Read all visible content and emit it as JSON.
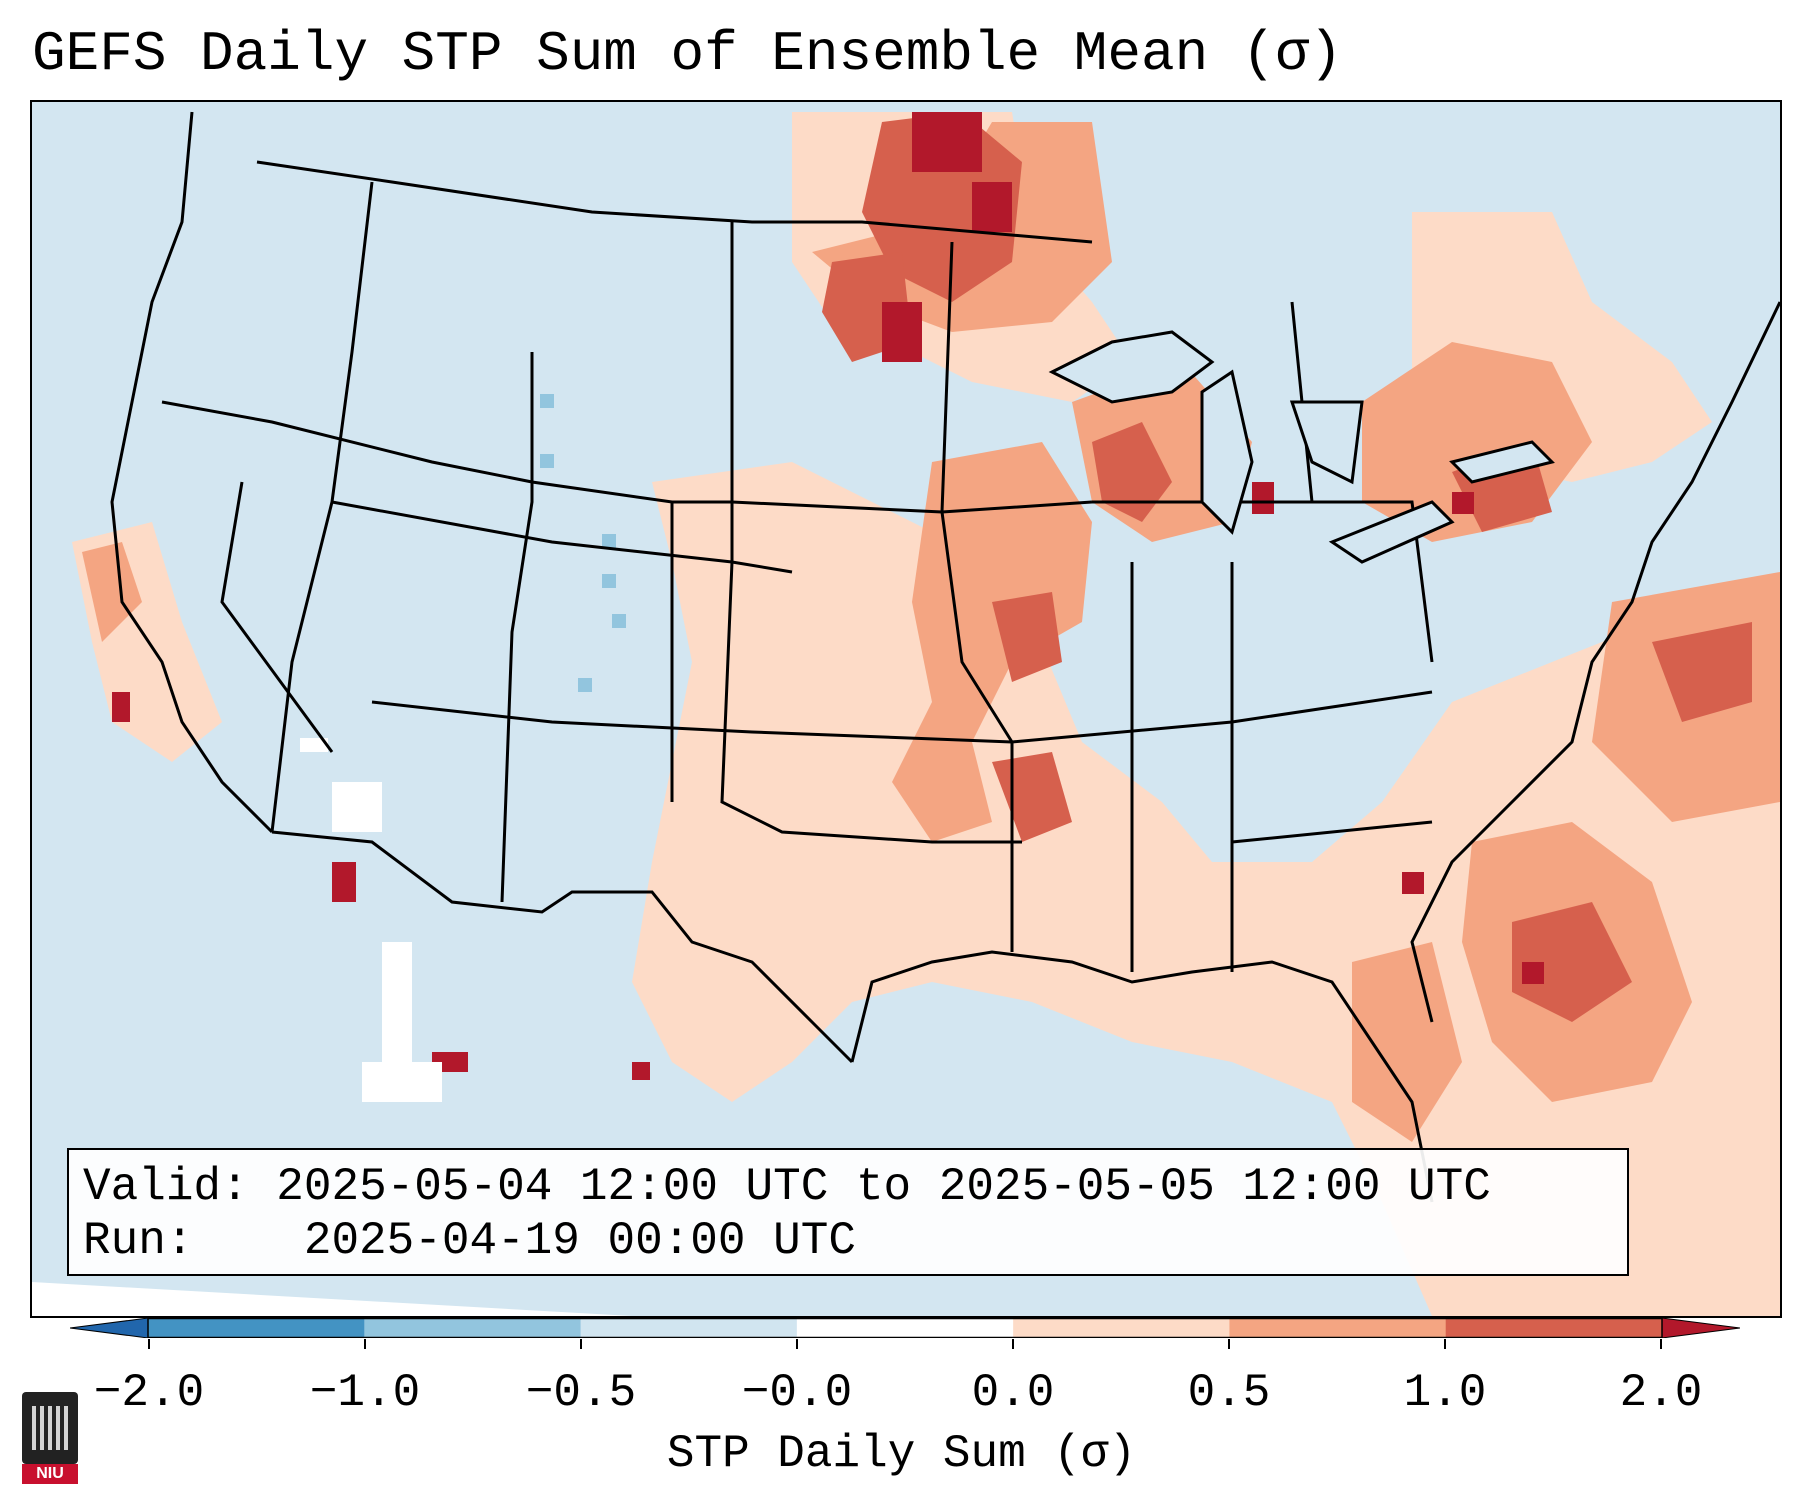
{
  "title": "GEFS Daily STP Sum of Ensemble Mean (σ)",
  "info": {
    "valid_label": "Valid:",
    "valid_value": "2025-05-04 12:00 UTC to 2025-05-05 12:00 UTC",
    "run_label": "Run:",
    "run_value": "2025-04-19 00:00 UTC"
  },
  "colorbar": {
    "label": "STP Daily Sum (σ)",
    "ticks": [
      "−2.0",
      "−1.0",
      "−0.5",
      "−0.0",
      "0.0",
      "0.5",
      "1.0",
      "2.0"
    ],
    "colors": [
      "#2166ac",
      "#4393c3",
      "#92c5de",
      "#d1e5f0",
      "#ffffff",
      "#fddbc7",
      "#f4a582",
      "#d6604d",
      "#b2182b"
    ]
  },
  "logo_text": "NIU",
  "icons": {
    "logo": "niu-logo-icon"
  }
}
